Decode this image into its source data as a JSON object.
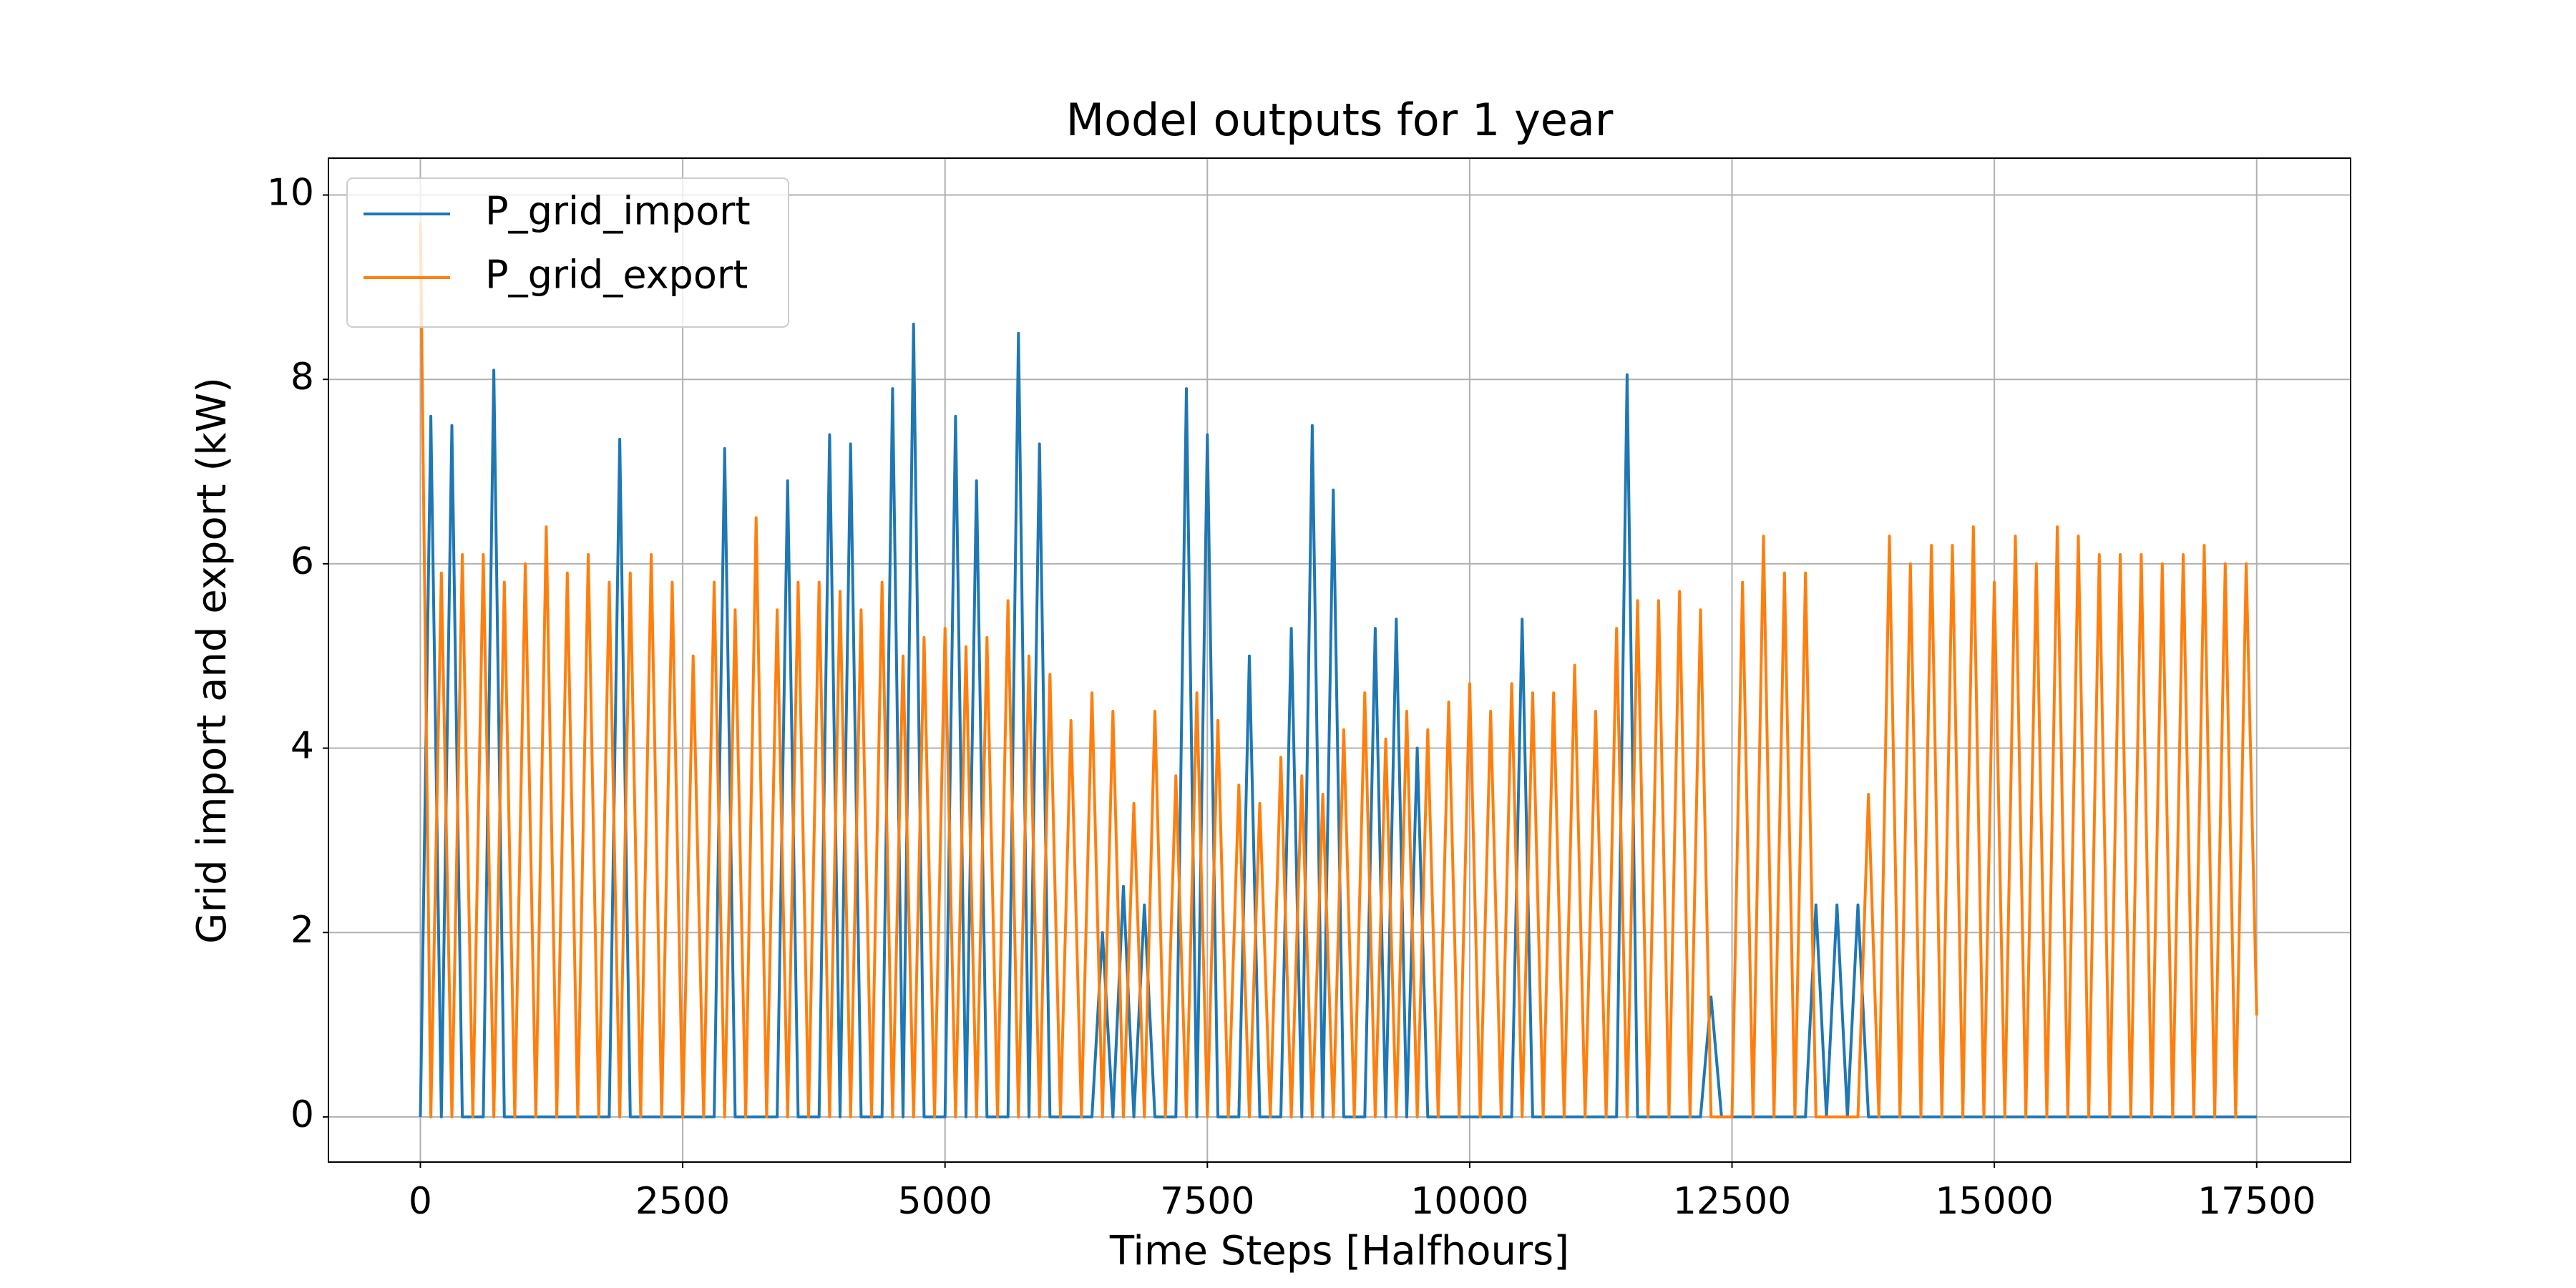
{
  "chart_data": {
    "type": "line",
    "title": "Model outputs for 1 year",
    "xlabel": "Time Steps [Halfhours]",
    "ylabel": "Grid import and export (kW)",
    "x": [
      0,
      100,
      200,
      300,
      400,
      500,
      600,
      700,
      800,
      900,
      1000,
      1100,
      1200,
      1300,
      1400,
      1500,
      1600,
      1700,
      1800,
      1900,
      2000,
      2100,
      2200,
      2300,
      2400,
      2500,
      2600,
      2700,
      2800,
      2900,
      3000,
      3100,
      3200,
      3300,
      3400,
      3500,
      3600,
      3700,
      3800,
      3900,
      4000,
      4100,
      4200,
      4300,
      4400,
      4500,
      4600,
      4700,
      4800,
      4900,
      5000,
      5100,
      5200,
      5300,
      5400,
      5500,
      5600,
      5700,
      5800,
      5900,
      6000,
      6100,
      6200,
      6300,
      6400,
      6500,
      6600,
      6700,
      6800,
      6900,
      7000,
      7100,
      7200,
      7300,
      7400,
      7500,
      7600,
      7700,
      7800,
      7900,
      8000,
      8100,
      8200,
      8300,
      8400,
      8500,
      8600,
      8700,
      8800,
      8900,
      9000,
      9100,
      9200,
      9300,
      9400,
      9500,
      9600,
      9700,
      9800,
      9900,
      10000,
      10100,
      10200,
      10300,
      10400,
      10500,
      10600,
      10700,
      10800,
      10900,
      11000,
      11100,
      11200,
      11300,
      11400,
      11500,
      11600,
      11700,
      11800,
      11900,
      12000,
      12100,
      12200,
      12300,
      12400,
      12500,
      12600,
      12700,
      12800,
      12900,
      13000,
      13100,
      13200,
      13300,
      13400,
      13500,
      13600,
      13700,
      13800,
      13900,
      14000,
      14100,
      14200,
      14300,
      14400,
      14500,
      14600,
      14700,
      14800,
      14900,
      15000,
      15100,
      15200,
      15300,
      15400,
      15500,
      15600,
      15700,
      15800,
      15900,
      16000,
      16100,
      16200,
      16300,
      16400,
      16500,
      16600,
      16700,
      16800,
      16900,
      17000,
      17100,
      17200,
      17300,
      17400,
      17500
    ],
    "series": [
      {
        "name": "P_grid_import",
        "color": "#1f77b4",
        "values": [
          0,
          7.6,
          0,
          7.5,
          0,
          0,
          0,
          8.1,
          0,
          0,
          0,
          0,
          0,
          0,
          0,
          0,
          0,
          0,
          0,
          7.35,
          0,
          0,
          0,
          0,
          0,
          0,
          0,
          0,
          0,
          7.25,
          0,
          0,
          0,
          0,
          0,
          6.9,
          0,
          0,
          0,
          7.4,
          0,
          7.3,
          0,
          0,
          0,
          7.9,
          0,
          8.6,
          0,
          0,
          0,
          7.6,
          0,
          6.9,
          0,
          0,
          0,
          8.5,
          0,
          7.3,
          0,
          0,
          0,
          0,
          0,
          2.0,
          0,
          2.5,
          0,
          2.3,
          0,
          0,
          0,
          7.9,
          0,
          7.4,
          0,
          0,
          0,
          5.0,
          0,
          0,
          0,
          5.3,
          0,
          7.5,
          0,
          6.8,
          0,
          0,
          0,
          5.3,
          0,
          5.4,
          0,
          4.0,
          0,
          0,
          0,
          0,
          0,
          0,
          0,
          0,
          0,
          5.4,
          0,
          0,
          0,
          0,
          0,
          0,
          0,
          0,
          0,
          8.05,
          0,
          0,
          0,
          0,
          0,
          0,
          0,
          1.3,
          0,
          0,
          0,
          0,
          0,
          0,
          0,
          0,
          0,
          2.3,
          0,
          2.3,
          0,
          2.3,
          0,
          0,
          0,
          0,
          0,
          0,
          0,
          0,
          0,
          0,
          0,
          0,
          0,
          0,
          0,
          0,
          0,
          0,
          0,
          0,
          0,
          0,
          0,
          0,
          0,
          0,
          0,
          0,
          0,
          0,
          0,
          0,
          0,
          0,
          0,
          0,
          0,
          0
        ]
      },
      {
        "name": "P_grid_export",
        "color": "#ff7f0e",
        "values": [
          9.7,
          0,
          5.9,
          0,
          6.1,
          0,
          6.1,
          0,
          5.8,
          0,
          6.0,
          0,
          6.4,
          0,
          5.9,
          0,
          6.1,
          0,
          5.8,
          0,
          5.9,
          0,
          6.1,
          0,
          5.8,
          0,
          5.0,
          0,
          5.8,
          0,
          5.5,
          0,
          6.5,
          0,
          5.5,
          0,
          5.8,
          0,
          5.8,
          0,
          5.7,
          0,
          5.5,
          0,
          5.8,
          0,
          5.0,
          0,
          5.2,
          0,
          5.3,
          0,
          5.1,
          0,
          5.2,
          0,
          5.6,
          0,
          5.0,
          0,
          4.8,
          0,
          4.3,
          0,
          4.6,
          0,
          4.4,
          0,
          3.4,
          0,
          4.4,
          0,
          3.7,
          0,
          4.6,
          0,
          4.3,
          0,
          3.6,
          0,
          3.4,
          0,
          3.9,
          0,
          3.7,
          0,
          3.5,
          0,
          4.2,
          0,
          4.6,
          0,
          4.1,
          0,
          4.4,
          0,
          4.2,
          0,
          4.5,
          0,
          4.7,
          0,
          4.4,
          0,
          4.7,
          0,
          4.6,
          0,
          4.6,
          0,
          4.9,
          0,
          4.4,
          0,
          5.3,
          0,
          5.6,
          0,
          5.6,
          0,
          5.7,
          0,
          5.5,
          0,
          0,
          0,
          5.8,
          0,
          6.3,
          0,
          5.9,
          0,
          5.9,
          0,
          0,
          0,
          0,
          0,
          3.5,
          0,
          6.3,
          0,
          6.0,
          0,
          6.2,
          0,
          6.2,
          0,
          6.4,
          0,
          5.8,
          0,
          6.3,
          0,
          6.0,
          0,
          6.4,
          0,
          6.3,
          0,
          6.1,
          0,
          6.1,
          0,
          6.1,
          0,
          6.0,
          0,
          6.1,
          0,
          6.2,
          0,
          6.0,
          0,
          6.0,
          1.1
        ]
      }
    ],
    "xlim": [
      -876,
      18395
    ],
    "xticks": [
      0,
      2500,
      5000,
      7500,
      10000,
      12500,
      15000,
      17500
    ],
    "ylim": [
      -0.49,
      10.4
    ],
    "yticks": [
      0,
      2,
      4,
      6,
      8,
      10
    ],
    "grid": true,
    "legend": "upper left"
  }
}
